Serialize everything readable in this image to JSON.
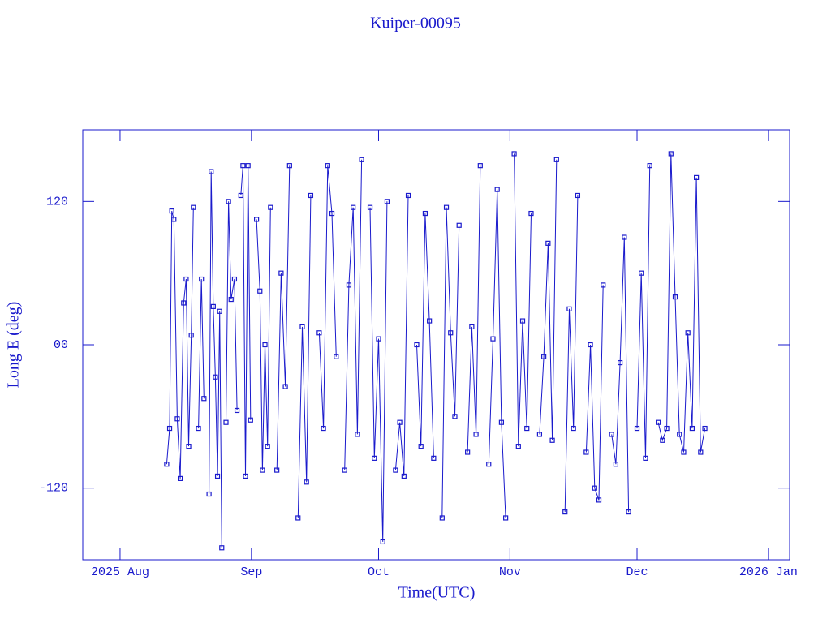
{
  "chart_data": {
    "type": "line",
    "title": "Kuiper-00095",
    "x_label": "Time(UTC)",
    "y_label": "Long E (deg)",
    "color": "#1a1acc",
    "markers": true,
    "xlim": [
      -8.8,
      158
    ],
    "ylim": [
      -180,
      180
    ],
    "xticks": [
      {
        "value": 0,
        "label": "2025 Aug"
      },
      {
        "value": 31,
        "label": "Sep"
      },
      {
        "value": 61,
        "label": "Oct"
      },
      {
        "value": 92,
        "label": "Nov"
      },
      {
        "value": 122,
        "label": "Dec"
      },
      {
        "value": 153,
        "label": "2026 Jan"
      }
    ],
    "yticks": [
      -120,
      {
        "value": 0,
        "label": "00"
      },
      120
    ],
    "x": [
      11,
      11.7,
      12.2,
      12.7,
      13.5,
      14.2,
      15,
      15.6,
      16.2,
      16.8,
      17.3,
      17.9,
      18.5,
      19.2,
      19.8,
      20.5,
      21,
      21.5,
      22,
      22.5,
      23,
      23.5,
      24,
      24.6,
      25,
      25.6,
      26.2,
      27,
      27.6,
      28,
      28.5,
      29,
      29.6,
      30.2,
      30.8,
      31.5,
      32.2,
      33,
      33.6,
      34.2,
      34.8,
      35.5,
      36,
      37,
      38,
      39,
      40,
      41,
      42,
      43,
      44,
      45,
      46,
      47,
      48,
      49,
      50,
      51,
      52,
      53,
      54,
      55,
      56,
      57,
      58,
      59,
      60,
      61,
      62,
      63,
      64,
      65,
      66,
      67,
      68,
      69,
      70,
      71,
      72,
      73,
      74,
      75,
      76,
      77,
      78,
      79,
      80,
      81,
      82,
      83,
      84,
      85,
      86,
      87,
      88,
      89,
      90,
      91,
      92,
      93,
      94,
      95,
      96,
      97,
      98,
      99,
      100,
      101,
      102,
      103,
      104,
      105,
      106,
      107,
      108,
      109,
      110,
      111,
      112,
      113,
      114,
      115,
      116,
      117,
      118,
      119,
      120,
      121,
      122,
      123,
      124,
      125,
      126,
      127,
      128,
      129,
      130,
      131,
      132,
      133,
      134,
      135,
      136,
      137,
      138
    ],
    "values": [
      -100,
      -70,
      112,
      105,
      -62,
      -112,
      35,
      55,
      -85,
      8,
      115,
      null,
      -70,
      55,
      -45,
      null,
      -125,
      145,
      32,
      -27,
      -110,
      28,
      -170,
      null,
      -65,
      120,
      38,
      55,
      -55,
      null,
      125,
      150,
      -110,
      150,
      -63,
      null,
      105,
      45,
      -105,
      0,
      -85,
      115,
      null,
      -105,
      60,
      -35,
      150,
      null,
      -145,
      15,
      -115,
      125,
      null,
      10,
      -70,
      150,
      110,
      -10,
      null,
      -105,
      50,
      115,
      -75,
      155,
      null,
      115,
      -95,
      5,
      -165,
      120,
      null,
      -105,
      -65,
      -110,
      125,
      null,
      0,
      -85,
      110,
      20,
      -95,
      null,
      -145,
      115,
      10,
      -60,
      100,
      null,
      -90,
      15,
      -75,
      150,
      null,
      -100,
      5,
      130,
      -65,
      -145,
      null,
      160,
      -85,
      20,
      -70,
      110,
      null,
      -75,
      -10,
      85,
      -80,
      155,
      null,
      -140,
      30,
      -70,
      125,
      null,
      -90,
      0,
      -120,
      -130,
      50,
      null,
      -75,
      -100,
      -15,
      90,
      -140,
      null,
      -70,
      60,
      -95,
      150,
      null,
      -65,
      -80,
      -70,
      160,
      40,
      -75,
      -90,
      10,
      -70,
      140,
      -90,
      -70
    ]
  }
}
